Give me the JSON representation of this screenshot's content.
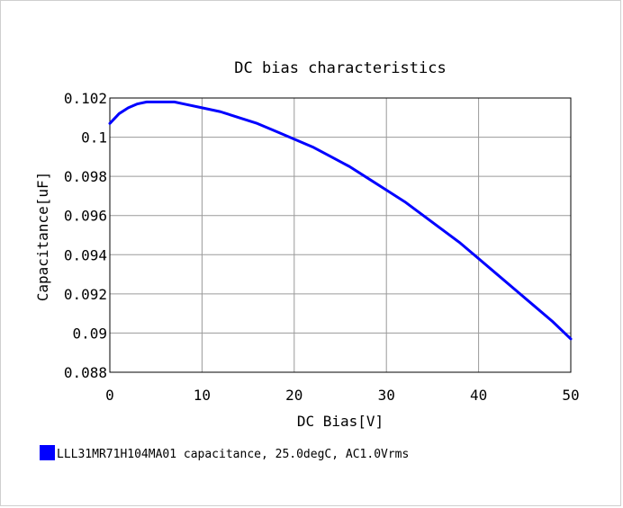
{
  "chart_data": {
    "type": "line",
    "title": "DC bias characteristics",
    "xlabel": "DC Bias[V]",
    "ylabel": "Capacitance[uF]",
    "xlim": [
      0,
      50
    ],
    "ylim": [
      0.088,
      0.102
    ],
    "grid": true,
    "legend_position": "bottom-left",
    "x_ticks": [
      0,
      10,
      20,
      30,
      40,
      50
    ],
    "x_tick_labels": [
      "0",
      "10",
      "20",
      "30",
      "40",
      "50"
    ],
    "y_ticks": [
      0.088,
      0.09,
      0.092,
      0.094,
      0.096,
      0.098,
      0.1,
      0.102
    ],
    "y_tick_labels": [
      "0.088",
      "0.09",
      "0.092",
      "0.094",
      "0.096",
      "0.098",
      "0.1",
      "0.102"
    ],
    "series": [
      {
        "name": "LLL31MR71H104MA01 capacitance, 25.0degC, AC1.0Vrms",
        "color": "#0000ff",
        "x": [
          0,
          1,
          2,
          3,
          4,
          5,
          6,
          7,
          8,
          10,
          12,
          14,
          16,
          18,
          20,
          22,
          24,
          26,
          28,
          30,
          32,
          34,
          36,
          38,
          40,
          42,
          44,
          46,
          48,
          50
        ],
        "y": [
          0.1007,
          0.1012,
          0.1015,
          0.1017,
          0.1018,
          0.1018,
          0.1018,
          0.1018,
          0.1017,
          0.1015,
          0.1013,
          0.101,
          0.1007,
          0.1003,
          0.0999,
          0.0995,
          0.099,
          0.0985,
          0.0979,
          0.0973,
          0.0967,
          0.096,
          0.0953,
          0.0946,
          0.0938,
          0.093,
          0.0922,
          0.0914,
          0.0906,
          0.0897
        ]
      }
    ]
  }
}
